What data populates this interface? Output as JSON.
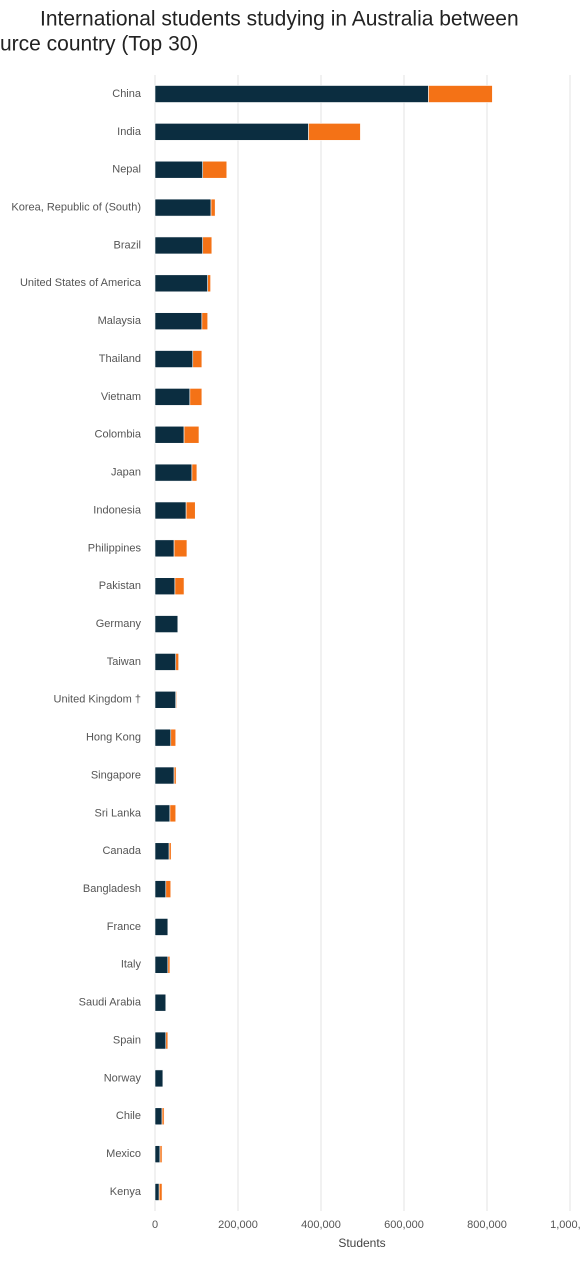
{
  "chart_data": {
    "type": "stacked-bar-horizontal",
    "title": [
      "International students studying in Australia between",
      "urce country (Top 30)"
    ],
    "x_label": "Students",
    "categories": [
      "China",
      "India",
      "Nepal",
      "Korea, Republic of (South)",
      "Brazil",
      "United States of America",
      "Malaysia",
      "Thailand",
      "Vietnam",
      "Colombia",
      "Japan",
      "Indonesia",
      "Philippines",
      "Pakistan",
      "Germany",
      "Taiwan",
      "United Kingdom †",
      "Hong Kong",
      "Singapore",
      "Sri Lanka",
      "Canada",
      "Bangladesh",
      "France",
      "Italy",
      "Saudi Arabia",
      "Spain",
      "Norway",
      "Chile",
      "Mexico",
      "Kenya"
    ],
    "series": [
      {
        "color": "#0b2d40",
        "values": [
          659000,
          370000,
          115000,
          135000,
          115000,
          127000,
          113000,
          91000,
          84000,
          70000,
          89000,
          75000,
          46000,
          48000,
          55000,
          50000,
          50000,
          38000,
          46000,
          36000,
          34000,
          26000,
          31000,
          31000,
          26000,
          26000,
          19000,
          17000,
          12000,
          10000
        ]
      },
      {
        "color": "#f47216",
        "values": [
          154000,
          125000,
          58000,
          10000,
          22000,
          7000,
          14000,
          22000,
          29000,
          36000,
          12000,
          22000,
          31000,
          22000,
          0,
          7000,
          2000,
          12000,
          5000,
          14000,
          5000,
          12000,
          0,
          5000,
          0,
          5000,
          0,
          5000,
          5000,
          7000
        ]
      }
    ],
    "xlim": [
      0,
      1000000
    ],
    "xticks": [
      0,
      {
        "value": 200000,
        "label": "200,000"
      },
      {
        "value": 400000,
        "label": "400,000"
      },
      {
        "value": 600000,
        "label": "600,000"
      },
      {
        "value": 800000,
        "label": "800,000"
      },
      {
        "value": 1000000,
        "label": "1,000,..."
      }
    ],
    "grid": true
  }
}
